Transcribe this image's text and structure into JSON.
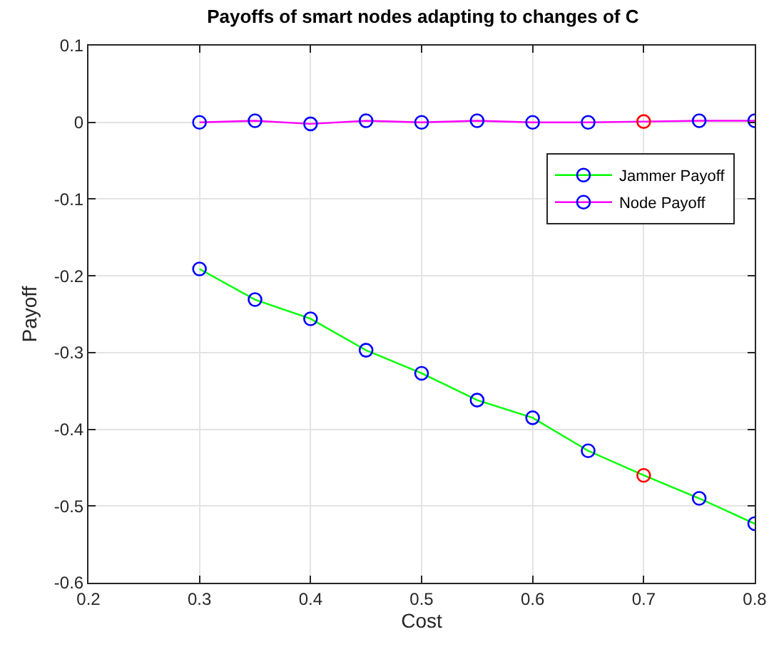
{
  "chart_data": {
    "type": "line",
    "title": "Payoffs of smart nodes adapting to changes of C",
    "xlabel": "Cost",
    "ylabel": "Payoff",
    "x": [
      0.3,
      0.35,
      0.4,
      0.45,
      0.5,
      0.55,
      0.6,
      0.65,
      0.7,
      0.75,
      0.8
    ],
    "series": [
      {
        "name": "Jammer Payoff",
        "color": "#00ff00",
        "colors": [
          "#0000ff",
          "#0000ff",
          "#0000ff",
          "#0000ff",
          "#0000ff",
          "#0000ff",
          "#0000ff",
          "#0000ff",
          "#ff0000",
          "#0000ff",
          "#0000ff"
        ],
        "values": [
          -0.191,
          -0.231,
          -0.256,
          -0.297,
          -0.327,
          -0.362,
          -0.385,
          -0.428,
          -0.46,
          -0.49,
          -0.523
        ]
      },
      {
        "name": "Node Payoff",
        "color": "#ff00ff",
        "colors": [
          "#0000ff",
          "#0000ff",
          "#0000ff",
          "#0000ff",
          "#0000ff",
          "#0000ff",
          "#0000ff",
          "#0000ff",
          "#ff0000",
          "#0000ff",
          "#0000ff"
        ],
        "values": [
          0,
          0.002,
          -0.002,
          0.002,
          0,
          0.002,
          0,
          0,
          0.001,
          0.002,
          0.002
        ]
      }
    ],
    "xlim": [
      0.2,
      0.8
    ],
    "xticks": [
      0.2,
      0.3,
      0.4,
      0.5,
      0.6,
      0.7,
      0.8
    ],
    "ylim": [
      -0.6,
      0.1
    ],
    "yticks": [
      -0.6,
      -0.5,
      -0.4,
      -0.3,
      -0.2,
      -0.1,
      0,
      0.1
    ],
    "grid": true,
    "legend": "top right",
    "marker": "circle",
    "line_style": "solid"
  }
}
